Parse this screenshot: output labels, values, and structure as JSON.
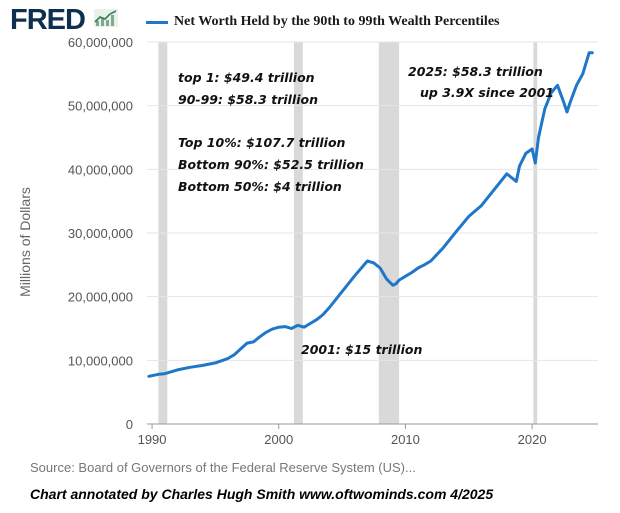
{
  "header": {
    "logo": "FRED",
    "logo_icon": "line-graph-icon"
  },
  "footer": {
    "source": "Source: Board of Governors of the Federal Reserve System (US)...",
    "credit": "Chart annotated by Charles Hugh Smith  www.oftwominds.com  4/2025"
  },
  "colors": {
    "line": "#1f77c9",
    "recession": "#d9d9d9",
    "grid": "#e6e6e6",
    "axis_text": "#555555"
  },
  "chart_data": {
    "type": "line",
    "title": "",
    "xlabel": "",
    "ylabel": "Millions of Dollars",
    "ylim": [
      0,
      60000000
    ],
    "xlim": [
      1989.6,
      2025.2
    ],
    "y_ticks": [
      0,
      10000000,
      20000000,
      30000000,
      40000000,
      50000000,
      60000000
    ],
    "y_tick_labels": [
      "0",
      "10,000,000",
      "20,000,000",
      "30,000,000",
      "40,000,000",
      "50,000,000",
      "60,000,000"
    ],
    "x_ticks": [
      1990,
      2000,
      2010,
      2020
    ],
    "x_tick_labels": [
      "1990",
      "2000",
      "2010",
      "2020"
    ],
    "grid": true,
    "legend_position": "top",
    "recession_bands": [
      [
        1990.5,
        1991.2
      ],
      [
        2001.2,
        2001.9
      ],
      [
        2007.9,
        2009.5
      ],
      [
        2020.1,
        2020.4
      ]
    ],
    "series": [
      {
        "name": "Net Worth Held by the 90th to 99th Wealth Percentiles",
        "x": [
          1989.75,
          1990.5,
          1991,
          1991.5,
          1992,
          1993,
          1994,
          1995,
          1996,
          1996.5,
          1997,
          1997.5,
          1998,
          1998.5,
          1999,
          1999.5,
          2000,
          2000.5,
          2001,
          2001.5,
          2002,
          2002.5,
          2003,
          2003.5,
          2004,
          2005,
          2006,
          2007,
          2007.5,
          2008,
          2008.5,
          2009,
          2009.25,
          2009.5,
          2010,
          2010.5,
          2011,
          2011.5,
          2012,
          2013,
          2014,
          2015,
          2016,
          2017,
          2018,
          2018.75,
          2019,
          2019.5,
          2020,
          2020.25,
          2020.5,
          2021,
          2021.5,
          2022,
          2022.5,
          2022.75,
          2023,
          2023.5,
          2024,
          2024.5,
          2024.75
        ],
        "values": [
          7500000,
          7800000,
          7900000,
          8200000,
          8500000,
          8900000,
          9200000,
          9600000,
          10300000,
          10900000,
          11800000,
          12700000,
          12900000,
          13700000,
          14400000,
          14900000,
          15200000,
          15300000,
          15000000,
          15500000,
          15200000,
          15800000,
          16400000,
          17200000,
          18300000,
          20800000,
          23300000,
          25600000,
          25300000,
          24500000,
          22800000,
          21800000,
          22000000,
          22600000,
          23200000,
          23800000,
          24500000,
          25000000,
          25600000,
          27700000,
          30200000,
          32600000,
          34300000,
          36800000,
          39300000,
          38100000,
          40500000,
          42500000,
          43200000,
          41000000,
          45000000,
          49500000,
          52000000,
          53200000,
          50500000,
          49000000,
          50500000,
          53200000,
          55000000,
          58300000,
          58300000
        ]
      }
    ],
    "annotations": [
      {
        "id": "top1",
        "text": "top 1:  $49.4 trillion"
      },
      {
        "id": "p9099",
        "text": "90-99: $58.3 trillion"
      },
      {
        "id": "top10",
        "text": "Top 10%: $107.7 trillion"
      },
      {
        "id": "bottom90",
        "text": "Bottom 90%: $52.5 trillion"
      },
      {
        "id": "bottom50",
        "text": "Bottom 50%: $4 trillion"
      },
      {
        "id": "y2001",
        "text": "2001: $15 trillion"
      },
      {
        "id": "y2025a",
        "text": "2025: $58.3 trillion"
      },
      {
        "id": "y2025b",
        "text": "up 3.9X since 2001"
      }
    ]
  }
}
